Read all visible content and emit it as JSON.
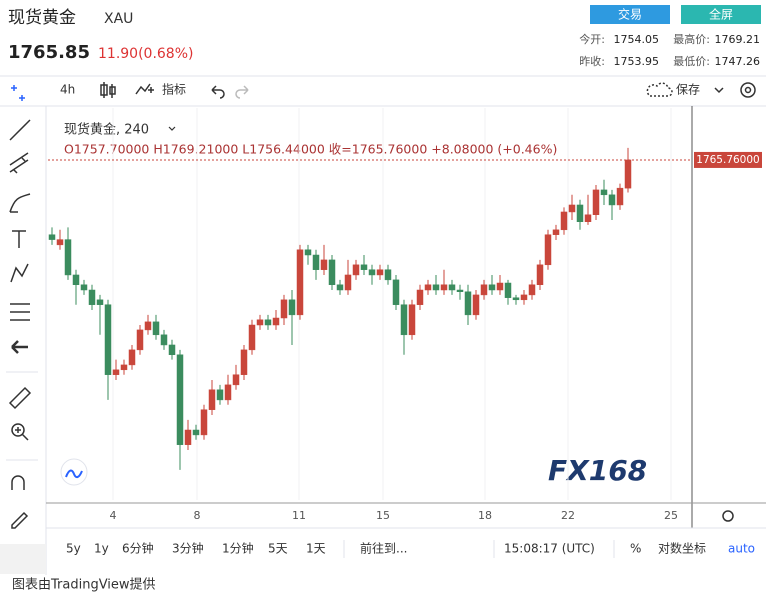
{
  "header": {
    "title": "现货黄金",
    "symbol": "XAU",
    "price": "1765.85",
    "change": "11.90(0.68%)",
    "buttons": [
      "交易",
      "全屏"
    ],
    "stats": [
      {
        "label": "今开:",
        "value": "1754.05"
      },
      {
        "label": "最高价:",
        "value": "1769.21"
      },
      {
        "label": "昨收:",
        "value": "1753.95"
      },
      {
        "label": "最低价:",
        "value": "1747.26"
      }
    ]
  },
  "toolbar": {
    "interval": "4h",
    "indicators": "指标",
    "save": "保存"
  },
  "chart_data": {
    "type": "candlestick",
    "legend_name": "现货黄金, 240",
    "ohlc_text": "O1757.70000  H1769.21000  L1756.44000  收=1765.76000  +8.08000 (+0.46%)",
    "up_color": "#c9463b",
    "down_color": "#3b8c5e",
    "ylim": [
      1668.6,
      1780.6
    ],
    "last_price": {
      "value": 1765.76,
      "label": "1765.76000"
    },
    "xtick_labels": [
      "4",
      "8",
      "11",
      "15",
      "18",
      "22",
      "25"
    ],
    "watermark": "FX168",
    "open": [
      1744.4,
      1741.5,
      1743.0,
      1732.9,
      1730.1,
      1728.6,
      1725.8,
      1724.4,
      1704.4,
      1705.8,
      1707.2,
      1711.5,
      1717.2,
      1719.5,
      1715.8,
      1712.9,
      1710.1,
      1684.4,
      1688.6,
      1687.2,
      1694.4,
      1700.1,
      1697.2,
      1701.5,
      1704.4,
      1711.5,
      1718.6,
      1720.1,
      1718.6,
      1720.6,
      1725.8,
      1721.5,
      1740.1,
      1738.6,
      1734.4,
      1737.2,
      1730.1,
      1728.6,
      1732.9,
      1735.8,
      1734.4,
      1732.9,
      1734.4,
      1731.5,
      1724.4,
      1715.8,
      1724.4,
      1728.6,
      1730.1,
      1728.6,
      1730.1,
      1728.6,
      1728.1,
      1721.5,
      1727.2,
      1730.1,
      1728.6,
      1730.6,
      1726.4,
      1725.8,
      1727.2,
      1730.1,
      1735.8,
      1744.4,
      1745.8,
      1750.9,
      1752.9,
      1748.1,
      1750.1,
      1757.2,
      1755.8,
      1752.9,
      1757.7
    ],
    "high": [
      1746.5,
      1745.8,
      1746.5,
      1734.4,
      1731.5,
      1730.1,
      1727.2,
      1725.8,
      1708.7,
      1708.7,
      1712.9,
      1718.6,
      1721.5,
      1721.5,
      1717.2,
      1714.4,
      1711.5,
      1691.5,
      1690.1,
      1695.8,
      1702.9,
      1701.5,
      1704.4,
      1707.2,
      1712.9,
      1720.1,
      1721.5,
      1721.5,
      1722.9,
      1727.2,
      1728.6,
      1741.5,
      1741.5,
      1740.1,
      1741.5,
      1738.6,
      1731.5,
      1737.2,
      1737.2,
      1738.6,
      1735.8,
      1735.8,
      1735.8,
      1732.9,
      1725.8,
      1725.8,
      1730.1,
      1731.5,
      1732.9,
      1734.4,
      1731.5,
      1730.1,
      1730.1,
      1728.6,
      1731.5,
      1732.9,
      1732.9,
      1731.5,
      1727.2,
      1728.6,
      1731.5,
      1737.2,
      1745.8,
      1747.2,
      1752.2,
      1755.8,
      1754.4,
      1755.8,
      1758.6,
      1760.1,
      1757.2,
      1759.0,
      1769.21
    ],
    "low": [
      1741.5,
      1740.1,
      1731.5,
      1724.4,
      1727.2,
      1722.9,
      1715.8,
      1697.2,
      1702.9,
      1704.4,
      1705.8,
      1710.1,
      1715.8,
      1714.4,
      1711.5,
      1708.7,
      1677.2,
      1682.9,
      1685.8,
      1685.8,
      1692.9,
      1695.8,
      1695.8,
      1700.1,
      1702.9,
      1710.1,
      1717.2,
      1717.2,
      1717.2,
      1718.6,
      1712.9,
      1720.1,
      1735.8,
      1731.5,
      1732.9,
      1728.6,
      1727.2,
      1727.2,
      1731.5,
      1732.9,
      1730.1,
      1731.5,
      1730.1,
      1722.9,
      1710.1,
      1714.4,
      1722.9,
      1727.2,
      1727.2,
      1727.2,
      1727.2,
      1725.8,
      1718.6,
      1720.1,
      1725.8,
      1727.2,
      1727.2,
      1724.4,
      1724.4,
      1724.4,
      1725.8,
      1728.6,
      1734.4,
      1742.9,
      1744.4,
      1748.6,
      1745.8,
      1747.2,
      1748.6,
      1752.9,
      1748.6,
      1751.5,
      1756.44
    ],
    "close": [
      1743.0,
      1743.0,
      1732.9,
      1730.1,
      1728.6,
      1724.4,
      1724.4,
      1704.4,
      1705.8,
      1707.2,
      1711.5,
      1717.2,
      1719.5,
      1715.8,
      1712.9,
      1710.1,
      1684.4,
      1688.6,
      1687.2,
      1694.4,
      1700.1,
      1697.2,
      1701.5,
      1704.4,
      1711.5,
      1718.6,
      1720.1,
      1718.6,
      1720.6,
      1725.8,
      1721.5,
      1740.1,
      1738.6,
      1734.4,
      1737.2,
      1730.1,
      1728.6,
      1732.9,
      1735.8,
      1734.4,
      1732.9,
      1734.4,
      1731.5,
      1724.4,
      1715.8,
      1724.4,
      1728.6,
      1730.1,
      1728.6,
      1730.1,
      1728.6,
      1728.1,
      1721.5,
      1727.2,
      1730.1,
      1728.6,
      1730.6,
      1726.4,
      1725.8,
      1727.2,
      1730.1,
      1735.8,
      1744.4,
      1745.8,
      1750.9,
      1752.9,
      1748.1,
      1750.1,
      1757.2,
      1755.8,
      1752.9,
      1757.7,
      1765.76
    ]
  },
  "bottom_bar": {
    "ranges": [
      "5y",
      "1y",
      "6分钟",
      "3分钟",
      "1分钟",
      "5天",
      "1天"
    ],
    "goto": "前往到...",
    "time": "15:08:17 (UTC)",
    "percent": "%",
    "log": "对数坐标",
    "auto": "auto"
  },
  "footer": "图表由TradingView提供"
}
